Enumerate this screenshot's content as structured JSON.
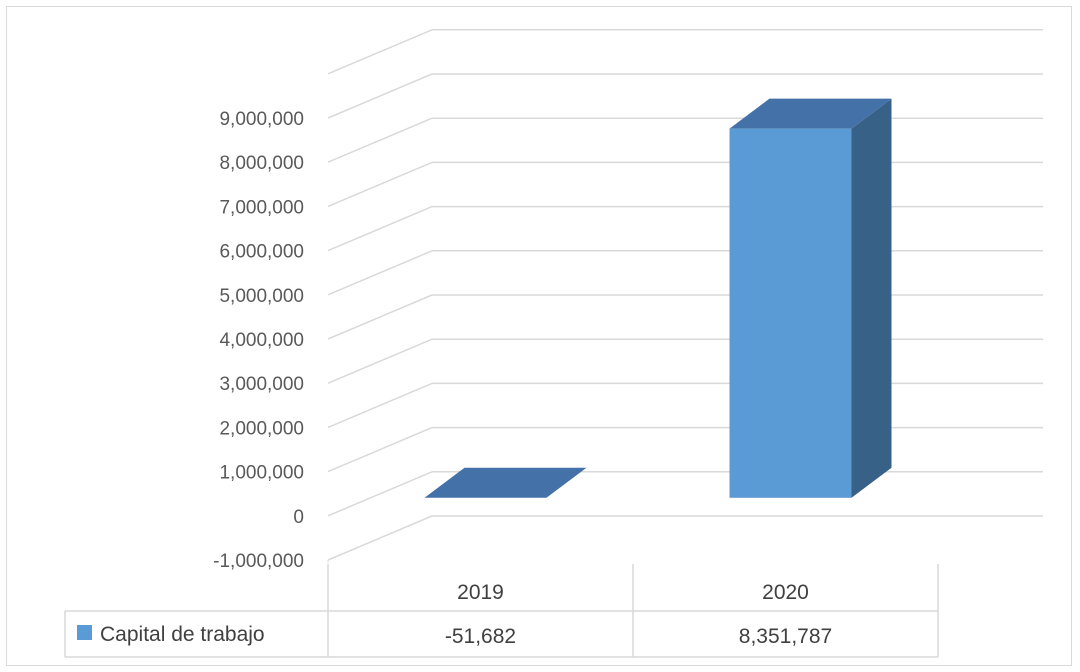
{
  "chart_data": {
    "type": "bar",
    "style": "3d-column",
    "categories": [
      "2019",
      "2020"
    ],
    "series": [
      {
        "name": "Capital de trabajo",
        "values": [
          -51682,
          8351787
        ],
        "color": "#5b9bd5"
      }
    ],
    "value_labels": [
      "-51,682",
      "8,351,787"
    ],
    "ylim": [
      -1000000,
      9000000
    ],
    "y_ticks": [
      "-1,000,000",
      "0",
      "1,000,000",
      "2,000,000",
      "3,000,000",
      "4,000,000",
      "5,000,000",
      "6,000,000",
      "7,000,000",
      "8,000,000",
      "9,000,000"
    ],
    "grid": true,
    "legend": "data-table-bottom",
    "title": "",
    "xlabel": "",
    "ylabel": ""
  }
}
